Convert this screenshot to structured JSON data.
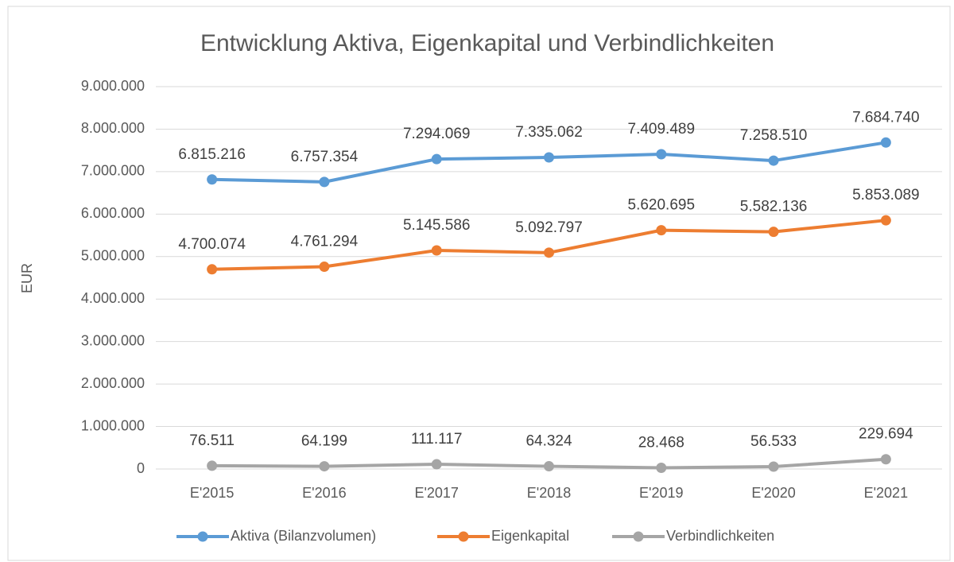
{
  "chart_data": {
    "type": "line",
    "title": "Entwicklung Aktiva, Eigenkapital und Verbindlichkeiten",
    "y_label": "EUR",
    "categories": [
      "E'2015",
      "E'2016",
      "E'2017",
      "E'2018",
      "E'2019",
      "E'2020",
      "E'2021"
    ],
    "series": [
      {
        "name": "Aktiva (Bilanzvolumen)",
        "color": "#5b9bd5",
        "values": [
          6815216,
          6757354,
          7294069,
          7335062,
          7409489,
          7258510,
          7684740
        ],
        "value_labels": [
          "6.815.216",
          "6.757.354",
          "7.294.069",
          "7.335.062",
          "7.409.489",
          "7.258.510",
          "7.684.740"
        ]
      },
      {
        "name": "Eigenkapital",
        "color": "#ed7d31",
        "values": [
          4700074,
          4761294,
          5145586,
          5092797,
          5620695,
          5582136,
          5853089
        ],
        "value_labels": [
          "4.700.074",
          "4.761.294",
          "5.145.586",
          "5.092.797",
          "5.620.695",
          "5.582.136",
          "5.853.089"
        ]
      },
      {
        "name": "Verbindlichkeiten",
        "color": "#a5a5a5",
        "values": [
          76511,
          64199,
          111117,
          64324,
          28468,
          56533,
          229694
        ],
        "value_labels": [
          "76.511",
          "64.199",
          "111.117",
          "64.324",
          "28.468",
          "56.533",
          "229.694"
        ]
      }
    ],
    "ylim": [
      0,
      9000000
    ],
    "yticks": [
      0,
      {
        "value": 1000000,
        "label": "1.000.000"
      },
      {
        "value": 2000000,
        "label": "2.000.000"
      },
      {
        "value": 3000000,
        "label": "3.000.000"
      },
      {
        "value": 4000000,
        "label": "4.000.000"
      },
      {
        "value": 5000000,
        "label": "5.000.000"
      },
      {
        "value": 6000000,
        "label": "6.000.000"
      },
      {
        "value": 7000000,
        "label": "7.000.000"
      },
      {
        "value": 8000000,
        "label": "8.000.000"
      },
      {
        "value": 9000000,
        "label": "9.000.000"
      }
    ],
    "grid": true,
    "legend": "bottom"
  }
}
